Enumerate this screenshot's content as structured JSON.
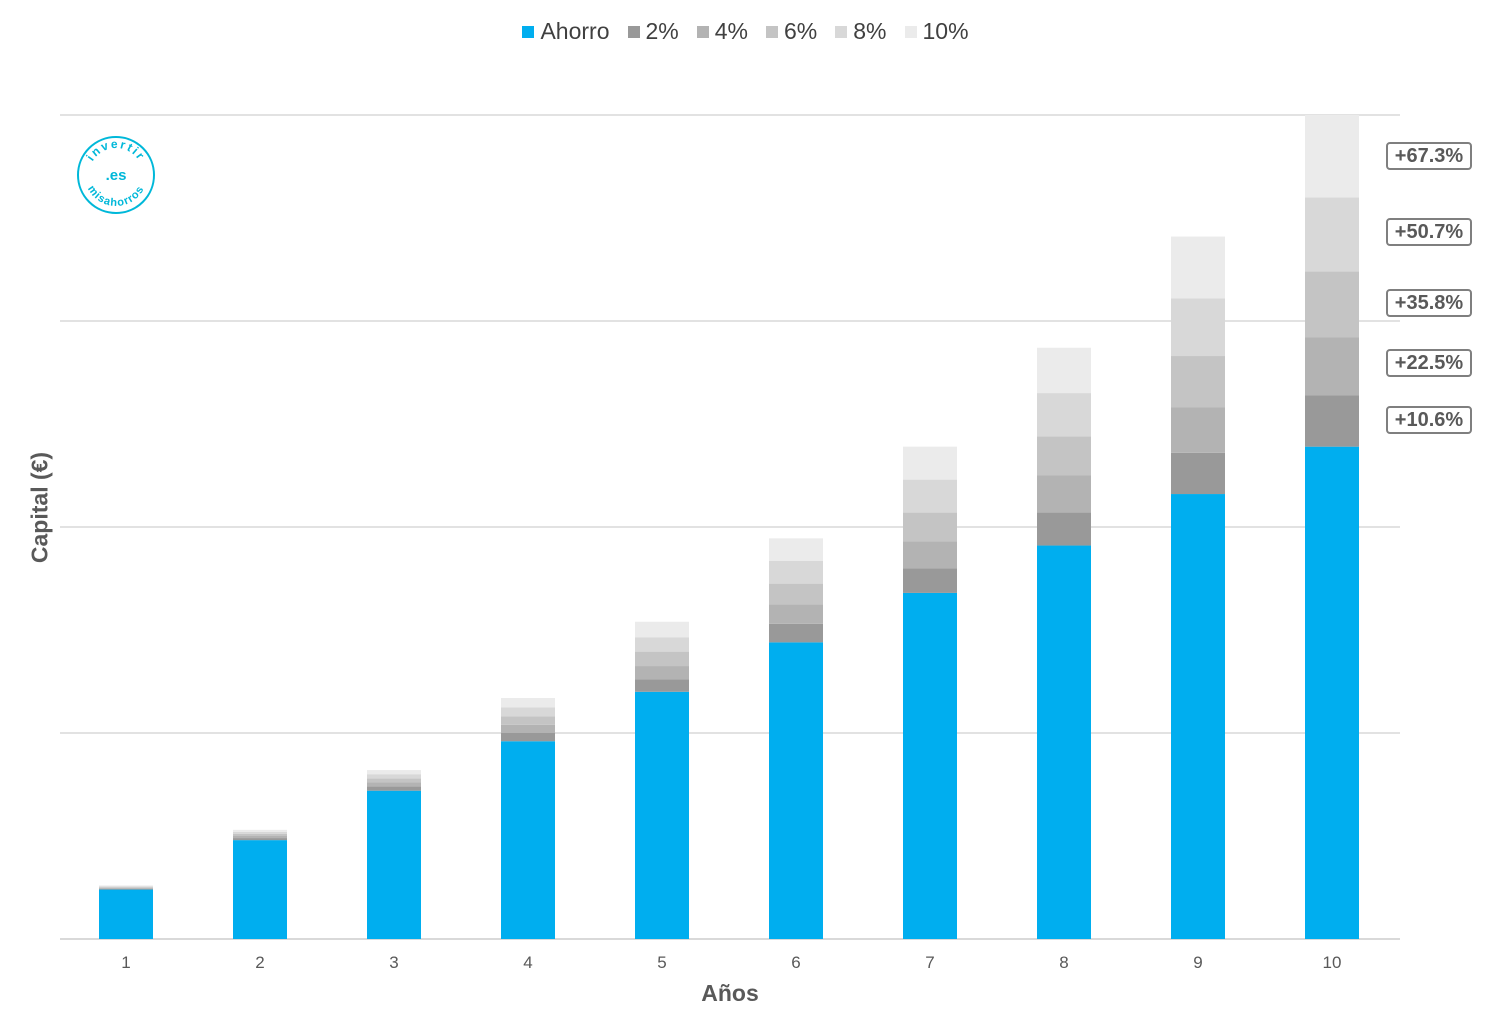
{
  "colors": {
    "ahorro": "#00aeef",
    "r2": "#999999",
    "r4": "#b3b3b3",
    "r6": "#c4c4c4",
    "r8": "#d8d8d8",
    "r10": "#ebebeb",
    "grid": "#d9d9d9",
    "logo": "#00b8d9"
  },
  "logo": {
    "top_text": "invertir",
    "center_text": ".es",
    "bottom_text": "misahorros"
  },
  "callouts": [
    "+67.3%",
    "+50.7%",
    "+35.8%",
    "+22.5%",
    "+10.6%"
  ],
  "chart_data": {
    "type": "bar",
    "stacked": true,
    "title": "",
    "xlabel": "Años",
    "ylabel": "Capital (€)",
    "ylim": [
      0,
      4
    ],
    "grid": true,
    "legend_position": "top",
    "categories": [
      "1",
      "2",
      "3",
      "4",
      "5",
      "6",
      "7",
      "8",
      "9",
      "10"
    ],
    "series": [
      {
        "name": "Ahorro",
        "color": "#00aeef",
        "values": [
          0.24,
          0.48,
          0.72,
          0.96,
          1.2,
          1.44,
          1.68,
          1.91,
          2.16,
          2.39
        ]
      },
      {
        "name": "2%",
        "color": "#999999",
        "values": [
          0.004,
          0.01,
          0.02,
          0.04,
          0.06,
          0.09,
          0.12,
          0.16,
          0.2,
          0.25
        ]
      },
      {
        "name": "4%",
        "color": "#b3b3b3",
        "values": [
          0.004,
          0.01,
          0.02,
          0.04,
          0.065,
          0.095,
          0.13,
          0.18,
          0.22,
          0.28
        ]
      },
      {
        "name": "6%",
        "color": "#c4c4c4",
        "values": [
          0.004,
          0.01,
          0.02,
          0.04,
          0.07,
          0.1,
          0.14,
          0.19,
          0.25,
          0.32
        ]
      },
      {
        "name": "8%",
        "color": "#d8d8d8",
        "values": [
          0.004,
          0.01,
          0.02,
          0.045,
          0.07,
          0.11,
          0.16,
          0.21,
          0.28,
          0.36
        ]
      },
      {
        "name": "10%",
        "color": "#ebebeb",
        "values": [
          0.004,
          0.01,
          0.02,
          0.045,
          0.075,
          0.11,
          0.16,
          0.22,
          0.3,
          0.4
        ]
      }
    ]
  }
}
